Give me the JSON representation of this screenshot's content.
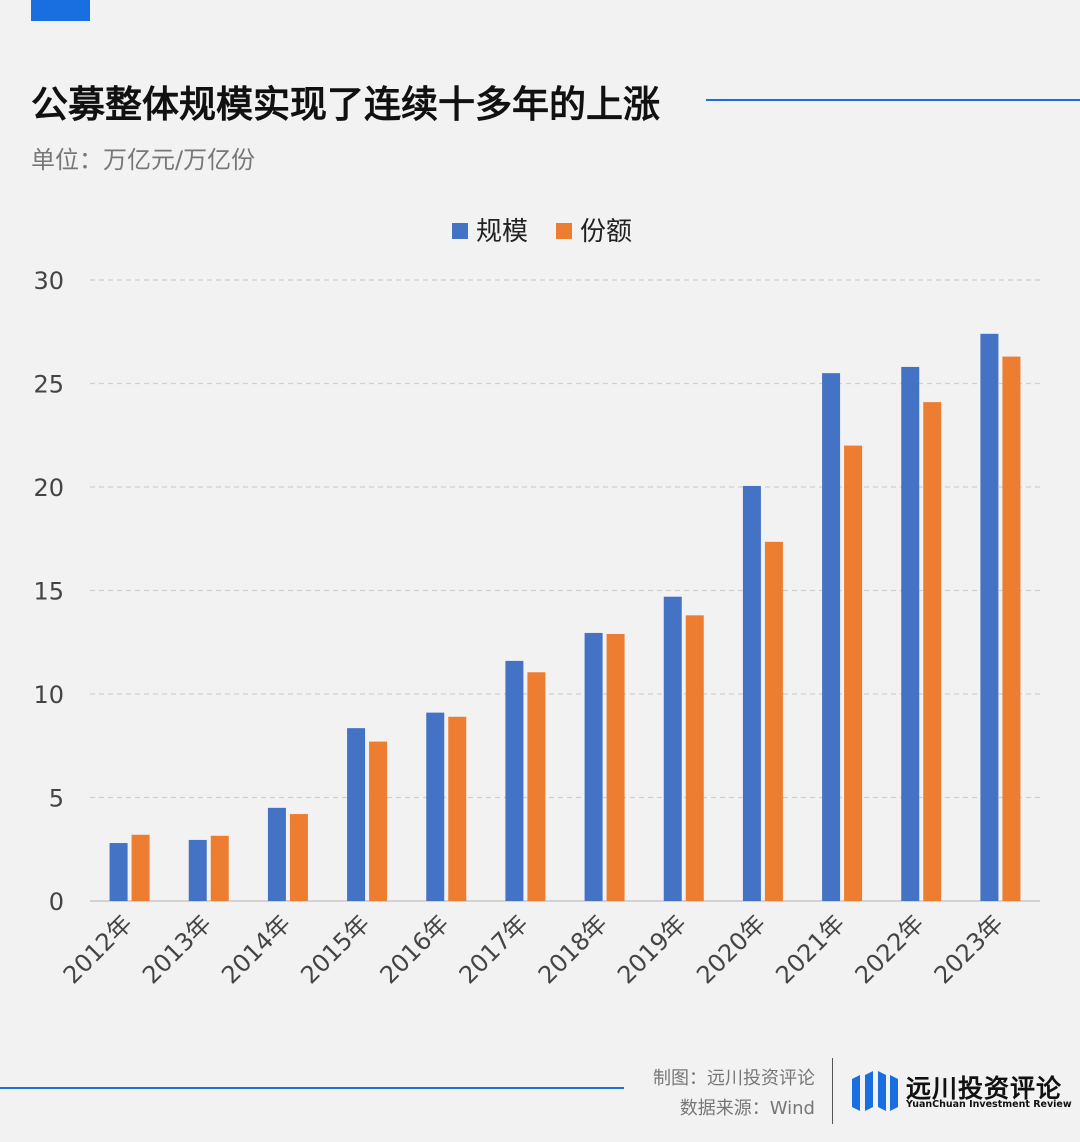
{
  "header": {
    "title": "公募整体规模实现了连续十多年的上涨",
    "unit": "单位：万亿元/万亿份"
  },
  "chart_data": {
    "type": "bar",
    "categories": [
      "2012年",
      "2013年",
      "2014年",
      "2015年",
      "2016年",
      "2017年",
      "2018年",
      "2019年",
      "2020年",
      "2021年",
      "2022年",
      "2023年"
    ],
    "series": [
      {
        "name": "规模",
        "color": "#4472c4",
        "values": [
          2.8,
          2.95,
          4.5,
          8.35,
          9.1,
          11.6,
          12.95,
          14.7,
          20.05,
          25.5,
          25.8,
          27.4
        ]
      },
      {
        "name": "份额",
        "color": "#ed7d31",
        "values": [
          3.2,
          3.15,
          4.2,
          7.7,
          8.9,
          11.05,
          12.9,
          13.8,
          17.35,
          22.0,
          24.1,
          26.3
        ]
      }
    ],
    "ylim": [
      0,
      30
    ],
    "yticks": [
      0,
      5,
      10,
      15,
      20,
      25,
      30
    ],
    "grid": true,
    "legend": "top-center",
    "xlabel": "",
    "ylabel": ""
  },
  "footer": {
    "credit_author": "制图：远川投资评论",
    "credit_source": "数据来源：Wind",
    "logo_cn": "远川投资评论",
    "logo_en": "YuanChuan Investment Review",
    "accent_color": "#1a6fe0"
  }
}
